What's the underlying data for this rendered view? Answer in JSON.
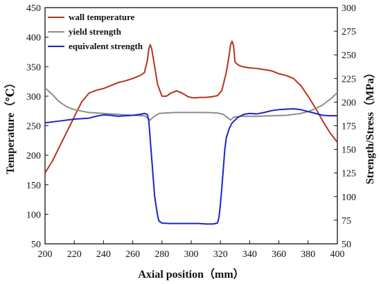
{
  "chart_data": {
    "type": "line",
    "xlabel": "Axial position（mm）",
    "ylabel_left": "Temperature（℃）",
    "ylabel_right": "Strength/Stress（MPa）",
    "xlim": [
      200,
      400
    ],
    "ylim_left": [
      50,
      450
    ],
    "ylim_right": [
      50,
      300
    ],
    "x_ticks": [
      200,
      220,
      240,
      260,
      280,
      300,
      320,
      340,
      360,
      380,
      400
    ],
    "y_left_ticks": [
      50,
      100,
      150,
      200,
      250,
      300,
      350,
      400,
      450
    ],
    "y_right_ticks": [
      50,
      75,
      100,
      125,
      150,
      175,
      200,
      225,
      250,
      275,
      300
    ],
    "grid": false,
    "legend_position": "top-left",
    "series": [
      {
        "name": "wall temperature",
        "axis": "left",
        "color": "#b5331c",
        "points": [
          [
            200,
            170
          ],
          [
            205,
            190
          ],
          [
            210,
            215
          ],
          [
            215,
            240
          ],
          [
            220,
            265
          ],
          [
            225,
            290
          ],
          [
            230,
            305
          ],
          [
            235,
            310
          ],
          [
            240,
            313
          ],
          [
            245,
            318
          ],
          [
            250,
            323
          ],
          [
            255,
            326
          ],
          [
            260,
            330
          ],
          [
            265,
            335
          ],
          [
            268,
            340
          ],
          [
            270,
            360
          ],
          [
            271,
            380
          ],
          [
            272,
            387
          ],
          [
            273,
            380
          ],
          [
            275,
            350
          ],
          [
            277,
            320
          ],
          [
            280,
            300
          ],
          [
            283,
            300
          ],
          [
            286,
            305
          ],
          [
            290,
            309
          ],
          [
            294,
            305
          ],
          [
            298,
            299
          ],
          [
            302,
            297
          ],
          [
            306,
            298
          ],
          [
            310,
            298
          ],
          [
            314,
            299
          ],
          [
            318,
            301
          ],
          [
            321,
            310
          ],
          [
            324,
            340
          ],
          [
            326,
            370
          ],
          [
            327,
            388
          ],
          [
            328,
            393
          ],
          [
            329,
            385
          ],
          [
            330,
            358
          ],
          [
            332,
            353
          ],
          [
            335,
            350
          ],
          [
            340,
            348
          ],
          [
            345,
            347
          ],
          [
            350,
            345
          ],
          [
            355,
            343
          ],
          [
            360,
            338
          ],
          [
            365,
            335
          ],
          [
            370,
            330
          ],
          [
            375,
            318
          ],
          [
            380,
            300
          ],
          [
            385,
            280
          ],
          [
            390,
            258
          ],
          [
            395,
            238
          ],
          [
            400,
            222
          ]
        ]
      },
      {
        "name": "yield strength",
        "axis": "right",
        "color": "#8c8c8c",
        "points": [
          [
            200,
            215
          ],
          [
            205,
            208
          ],
          [
            210,
            200
          ],
          [
            215,
            195
          ],
          [
            220,
            192
          ],
          [
            230,
            189
          ],
          [
            240,
            188
          ],
          [
            250,
            187
          ],
          [
            260,
            186
          ],
          [
            268,
            185.5
          ],
          [
            271,
            182
          ],
          [
            272,
            181
          ],
          [
            274,
            184
          ],
          [
            278,
            188
          ],
          [
            282,
            188.5
          ],
          [
            290,
            189
          ],
          [
            300,
            189
          ],
          [
            310,
            189
          ],
          [
            318,
            188.5
          ],
          [
            322,
            187
          ],
          [
            326,
            182
          ],
          [
            327,
            181
          ],
          [
            329,
            184
          ],
          [
            334,
            185
          ],
          [
            345,
            185
          ],
          [
            355,
            185.5
          ],
          [
            365,
            186
          ],
          [
            370,
            187
          ],
          [
            375,
            188
          ],
          [
            380,
            190
          ],
          [
            385,
            193
          ],
          [
            390,
            197
          ],
          [
            395,
            203
          ],
          [
            400,
            210
          ]
        ]
      },
      {
        "name": "equivalent strength",
        "axis": "right",
        "color": "#1f1fcc",
        "points": [
          [
            200,
            178
          ],
          [
            210,
            180
          ],
          [
            220,
            182
          ],
          [
            230,
            183
          ],
          [
            235,
            185
          ],
          [
            240,
            186.5
          ],
          [
            245,
            186
          ],
          [
            250,
            185
          ],
          [
            255,
            185.5
          ],
          [
            260,
            186
          ],
          [
            265,
            187
          ],
          [
            268,
            188
          ],
          [
            270,
            187
          ],
          [
            271,
            180
          ],
          [
            272,
            160
          ],
          [
            273,
            140
          ],
          [
            274,
            120
          ],
          [
            275,
            100
          ],
          [
            277,
            80
          ],
          [
            278,
            74
          ],
          [
            280,
            72
          ],
          [
            285,
            71.5
          ],
          [
            290,
            71.5
          ],
          [
            295,
            71.5
          ],
          [
            300,
            71.5
          ],
          [
            305,
            71.5
          ],
          [
            310,
            71
          ],
          [
            315,
            71
          ],
          [
            318,
            72
          ],
          [
            319,
            78
          ],
          [
            320,
            92
          ],
          [
            321,
            110
          ],
          [
            322,
            130
          ],
          [
            323,
            150
          ],
          [
            324,
            162
          ],
          [
            326,
            172
          ],
          [
            328,
            178
          ],
          [
            332,
            184
          ],
          [
            336,
            187
          ],
          [
            340,
            188
          ],
          [
            345,
            187.5
          ],
          [
            350,
            189
          ],
          [
            355,
            191
          ],
          [
            360,
            192
          ],
          [
            365,
            192.5
          ],
          [
            370,
            193
          ],
          [
            375,
            192
          ],
          [
            380,
            190
          ],
          [
            385,
            188
          ],
          [
            390,
            186
          ],
          [
            395,
            185.5
          ],
          [
            400,
            185.5
          ]
        ]
      }
    ]
  }
}
